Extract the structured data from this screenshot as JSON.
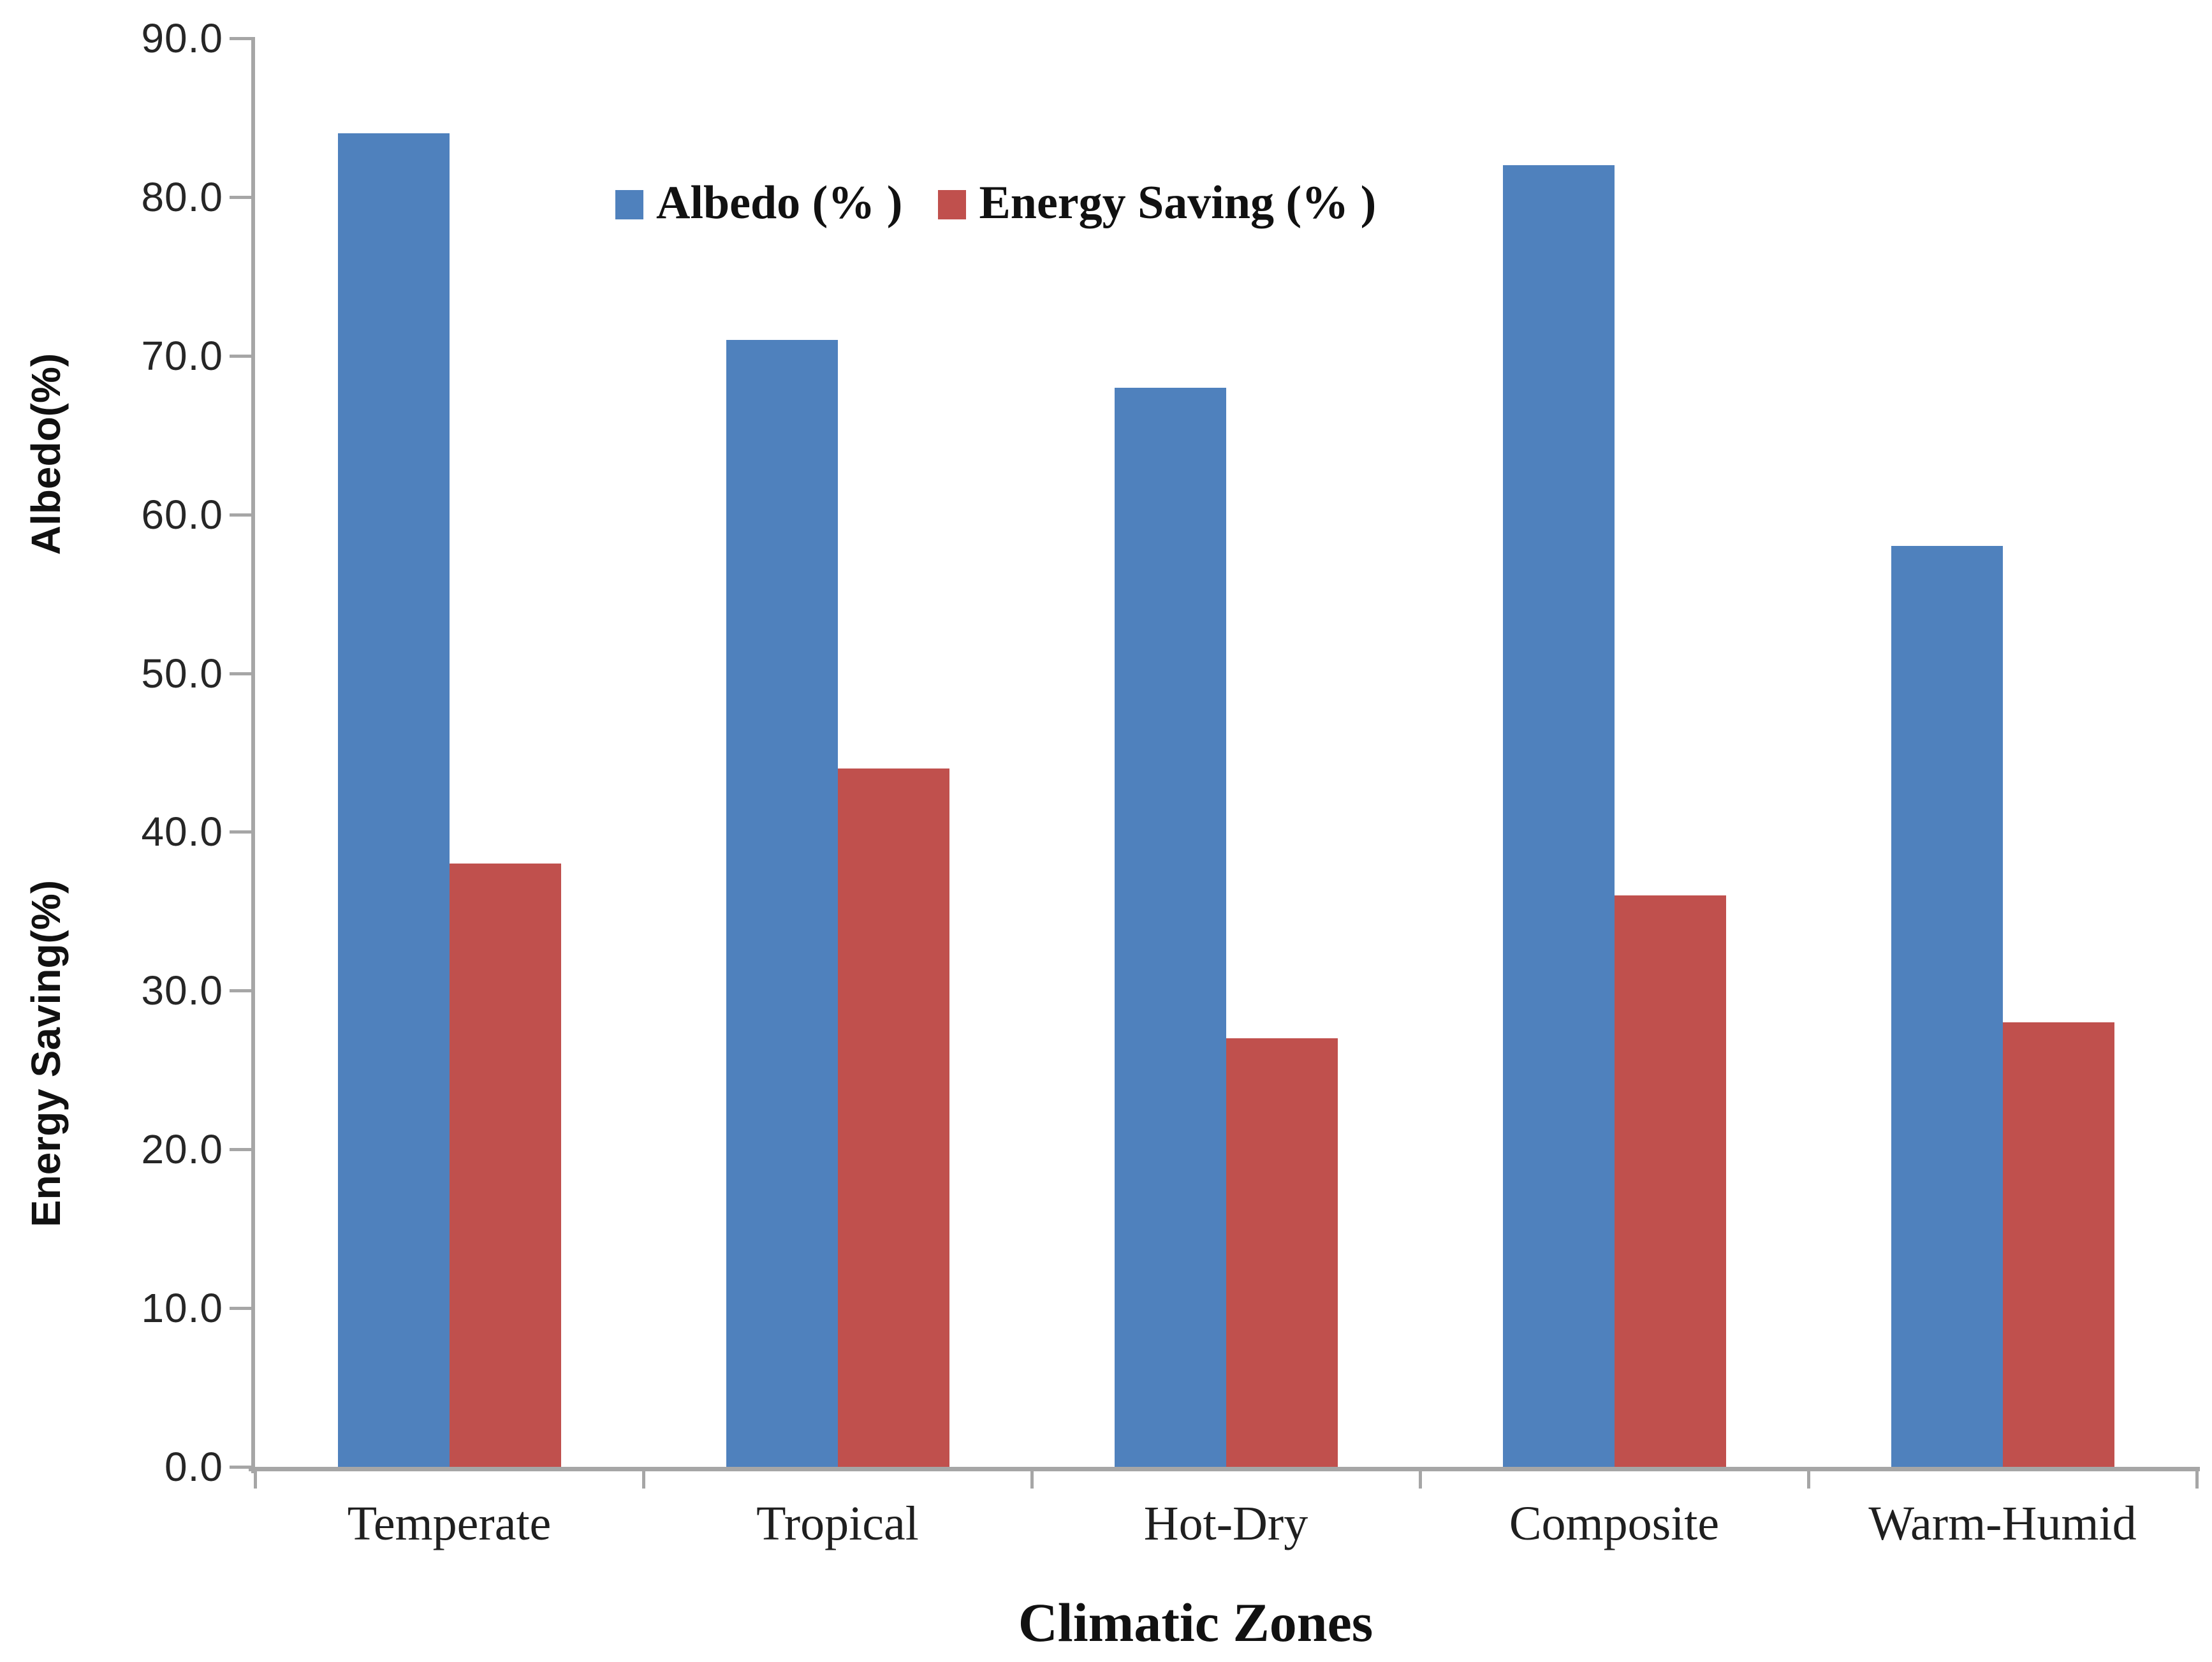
{
  "chart_data": {
    "type": "bar",
    "title": "",
    "categories": [
      "Temperate",
      "Tropical",
      "Hot-Dry",
      "Composite",
      "Warm-Humid"
    ],
    "series": [
      {
        "name": "Albedo (% )",
        "color": "#4F81BD",
        "values": [
          84,
          71,
          68,
          82,
          58
        ]
      },
      {
        "name": "Energy Saving (% )",
        "color": "#C0504D",
        "values": [
          38,
          44,
          27,
          36,
          28
        ]
      }
    ],
    "xlabel": "Climatic Zones",
    "ylabel_upper": "Albedo(%)",
    "ylabel_lower": "Energy Saving(%)",
    "ylim": [
      0,
      90
    ],
    "yticks": [
      "0.0",
      "10.0",
      "20.0",
      "30.0",
      "40.0",
      "50.0",
      "60.0",
      "70.0",
      "80.0",
      "90.0"
    ],
    "grid": false,
    "legend_position": "inside-top-left"
  },
  "style": {
    "axis_color": "#a6a6a6",
    "tick_text_color": "#262626",
    "label_text_color": "#111111",
    "background": "#ffffff"
  }
}
